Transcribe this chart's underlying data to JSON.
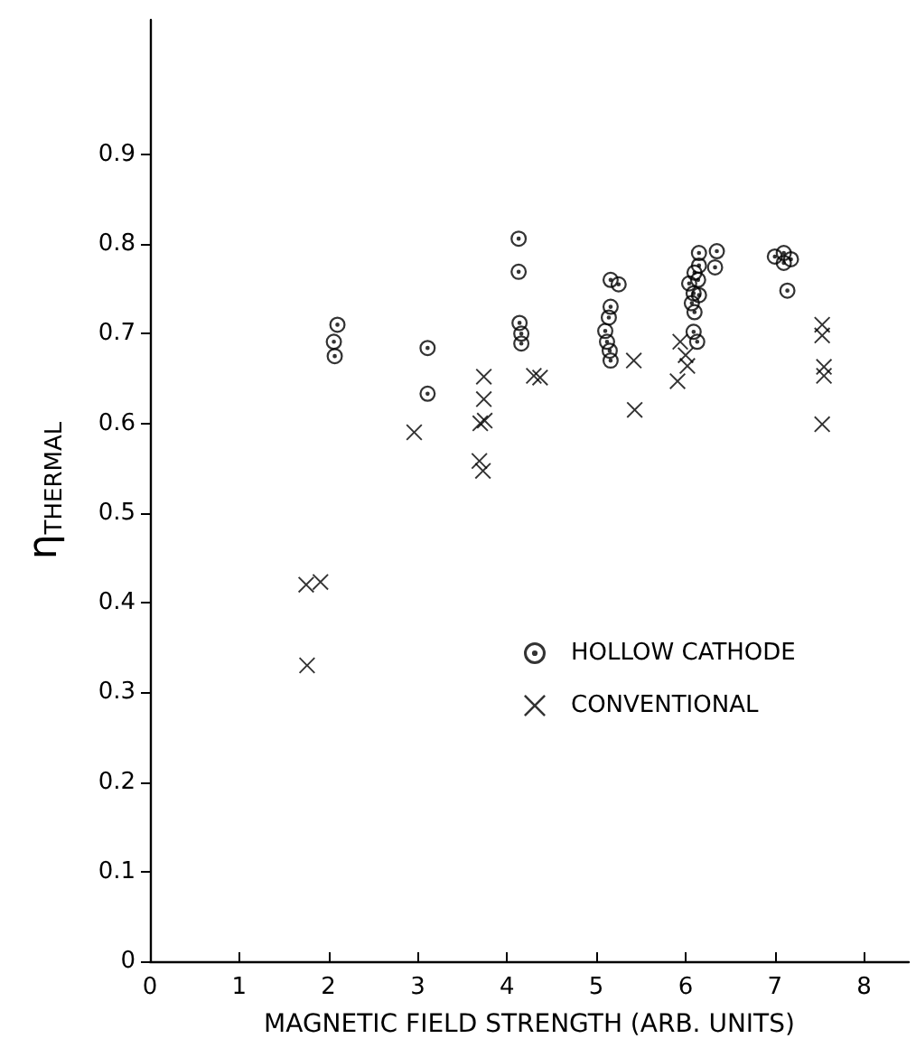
{
  "chart_data": {
    "type": "scatter",
    "xlabel": "MAGNETIC FIELD STRENGTH (ARB. UNITS)",
    "ylabel": "η$_{THERMAL}$",
    "xlim": [
      0,
      8.5
    ],
    "xticks": [
      0,
      1,
      2,
      3,
      4,
      5,
      6,
      7,
      8
    ],
    "ylim": [
      0,
      1.05
    ],
    "yticks": [
      0,
      0.1,
      0.2,
      0.3,
      0.4,
      0.5,
      0.6,
      0.7,
      0.8,
      0.9
    ],
    "grid": false,
    "legend": "right",
    "series": [
      {
        "name": "HOLLOW CATHODE",
        "color": "#000000",
        "marker": "circle",
        "x": [
          2.1,
          2.06,
          2.07,
          3.11,
          3.11,
          4.13,
          4.13,
          4.14,
          4.16,
          4.16,
          5.16,
          5.25,
          5.16,
          5.14,
          5.1,
          5.12,
          5.15,
          5.16,
          6.15,
          6.1,
          6.15,
          6.04,
          6.14,
          6.09,
          6.15,
          6.07,
          6.1,
          6.09,
          6.13,
          6.35,
          6.33,
          7.0,
          7.1,
          7.18,
          7.1,
          7.14
        ],
        "values": [
          0.71,
          0.691,
          0.675,
          0.684,
          0.633,
          0.806,
          0.769,
          0.712,
          0.7,
          0.689,
          0.76,
          0.755,
          0.73,
          0.718,
          0.703,
          0.691,
          0.681,
          0.67,
          0.79,
          0.768,
          0.776,
          0.756,
          0.76,
          0.745,
          0.743,
          0.734,
          0.724,
          0.702,
          0.691,
          0.792,
          0.774,
          0.786,
          0.79,
          0.783,
          0.779,
          0.748
        ]
      },
      {
        "name": "CONVENTIONAL",
        "color": "#000000",
        "marker": "cross",
        "x": [
          1.75,
          1.91,
          1.76,
          2.96,
          3.74,
          3.74,
          3.7,
          3.75,
          3.69,
          3.73,
          4.3,
          4.37,
          5.42,
          5.43,
          5.91,
          5.94,
          6.0,
          6.02,
          7.53,
          7.53,
          7.55,
          7.55,
          7.53
        ],
        "values": [
          0.42,
          0.423,
          0.33,
          0.59,
          0.652,
          0.627,
          0.6,
          0.603,
          0.558,
          0.547,
          0.653,
          0.651,
          0.67,
          0.615,
          0.647,
          0.691,
          0.676,
          0.664,
          0.71,
          0.698,
          0.663,
          0.653,
          0.599
        ]
      }
    ]
  }
}
